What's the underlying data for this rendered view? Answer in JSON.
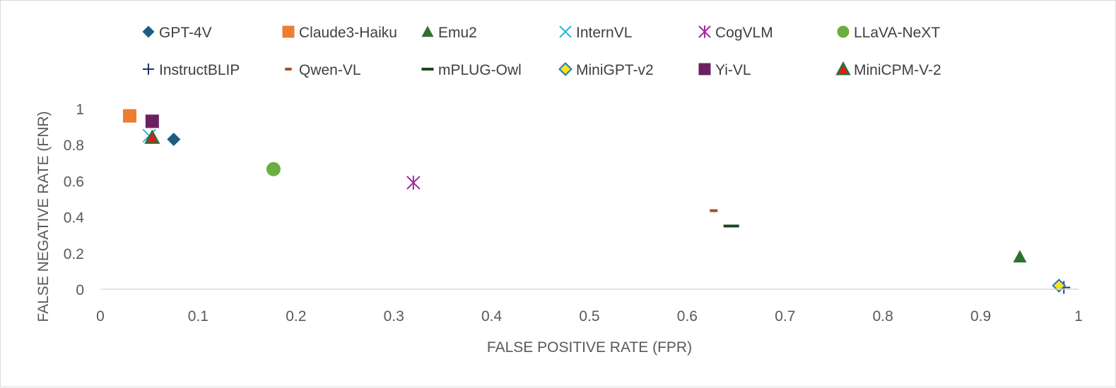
{
  "chart_data": {
    "type": "scatter",
    "title": "",
    "xlabel": "FALSE POSITIVE RATE (FPR)",
    "ylabel": "FALSE NEGATIVE RATE (FNR)",
    "xlim": [
      0,
      1
    ],
    "ylim": [
      0,
      1
    ],
    "x_ticks": [
      0,
      0.1,
      0.2,
      0.3,
      0.4,
      0.5,
      0.6,
      0.7,
      0.8,
      0.9,
      1
    ],
    "x_tick_labels": [
      "0",
      "0.1",
      "0.2",
      "0.3",
      "0.4",
      "0.5",
      "0.6",
      "0.7",
      "0.8",
      "0.9",
      "1"
    ],
    "y_ticks": [
      0,
      0.2,
      0.4,
      0.6,
      0.8,
      1
    ],
    "y_tick_labels": [
      "0",
      "0.2",
      "0.4",
      "0.6",
      "0.8",
      "1"
    ],
    "grid": false,
    "legend_position": "top",
    "series": [
      {
        "name": "GPT-4V",
        "marker": "diamond",
        "color": "#1f5c82",
        "x": 0.075,
        "y": 0.83
      },
      {
        "name": "Claude3-Haiku",
        "marker": "square",
        "color": "#ed7d31",
        "x": 0.03,
        "y": 0.96
      },
      {
        "name": "Emu2",
        "marker": "triangle",
        "color": "#2e7031",
        "x": 0.94,
        "y": 0.18
      },
      {
        "name": "InternVL",
        "marker": "x",
        "color": "#31b0e0",
        "x": 0.05,
        "y": 0.85
      },
      {
        "name": "CogVLM",
        "marker": "asterisk",
        "color": "#a02b9c",
        "x": 0.32,
        "y": 0.59
      },
      {
        "name": "LLaVA-NeXT",
        "marker": "circle",
        "color": "#6aaf3d",
        "x": 0.177,
        "y": 0.665
      },
      {
        "name": "InstructBLIP",
        "marker": "plus",
        "color": "#1f3864",
        "x": 0.985,
        "y": 0.01
      },
      {
        "name": "Qwen-VL",
        "marker": "dash-short",
        "color": "#a0522d",
        "x": 0.627,
        "y": 0.435
      },
      {
        "name": "mPLUG-Owl",
        "marker": "dash-long",
        "color": "#1e4620",
        "x": 0.645,
        "y": 0.35
      },
      {
        "name": "MiniGPT-v2",
        "marker": "diamond-outline",
        "color": "#f5e51b",
        "stroke": "#2e75b6",
        "x": 0.98,
        "y": 0.02
      },
      {
        "name": "Yi-VL",
        "marker": "square",
        "color": "#6b2160",
        "x": 0.053,
        "y": 0.93
      },
      {
        "name": "MiniCPM-V-2",
        "marker": "triangle-outline",
        "color": "#e31a1c",
        "stroke": "#2e7031",
        "x": 0.053,
        "y": 0.84
      }
    ]
  }
}
